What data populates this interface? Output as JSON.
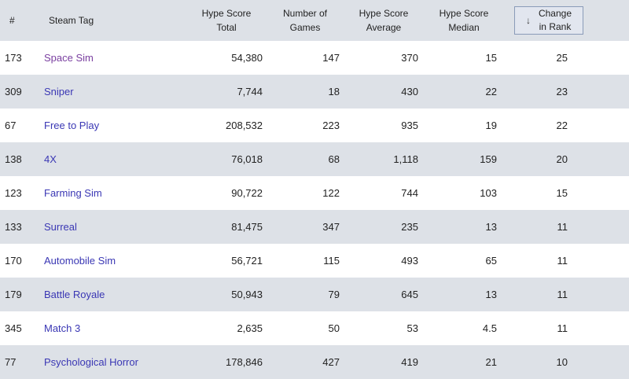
{
  "header": {
    "rank": "#",
    "tag": "Steam Tag",
    "total_line1": "Hype Score",
    "total_line2": "Total",
    "games_line1": "Number of",
    "games_line2": "Games",
    "avg_line1": "Hype Score",
    "avg_line2": "Average",
    "med_line1": "Hype Score",
    "med_line2": "Median",
    "change_line1": "Change",
    "change_line2": "in Rank",
    "sort_icon": "arrow-down-icon"
  },
  "rows": [
    {
      "rank": "173",
      "tag": "Space Sim",
      "total": "54,380",
      "games": "147",
      "avg": "370",
      "median": "15",
      "change": "25"
    },
    {
      "rank": "309",
      "tag": "Sniper",
      "total": "7,744",
      "games": "18",
      "avg": "430",
      "median": "22",
      "change": "23"
    },
    {
      "rank": "67",
      "tag": "Free to Play",
      "total": "208,532",
      "games": "223",
      "avg": "935",
      "median": "19",
      "change": "22"
    },
    {
      "rank": "138",
      "tag": "4X",
      "total": "76,018",
      "games": "68",
      "avg": "1,118",
      "median": "159",
      "change": "20"
    },
    {
      "rank": "123",
      "tag": "Farming Sim",
      "total": "90,722",
      "games": "122",
      "avg": "744",
      "median": "103",
      "change": "15"
    },
    {
      "rank": "133",
      "tag": "Surreal",
      "total": "81,475",
      "games": "347",
      "avg": "235",
      "median": "13",
      "change": "11"
    },
    {
      "rank": "170",
      "tag": "Automobile Sim",
      "total": "56,721",
      "games": "115",
      "avg": "493",
      "median": "65",
      "change": "11"
    },
    {
      "rank": "179",
      "tag": "Battle Royale",
      "total": "50,943",
      "games": "79",
      "avg": "645",
      "median": "13",
      "change": "11"
    },
    {
      "rank": "345",
      "tag": "Match 3",
      "total": "2,635",
      "games": "50",
      "avg": "53",
      "median": "4.5",
      "change": "11"
    },
    {
      "rank": "77",
      "tag": "Psychological Horror",
      "total": "178,846",
      "games": "427",
      "avg": "419",
      "median": "21",
      "change": "10"
    }
  ],
  "colors": {
    "header_bg": "#dde1e7",
    "alt_row_bg": "#dde1e7",
    "link": "#3a37b4",
    "visited_link": "#7a3fa0",
    "sort_border": "#8a9bb8"
  }
}
